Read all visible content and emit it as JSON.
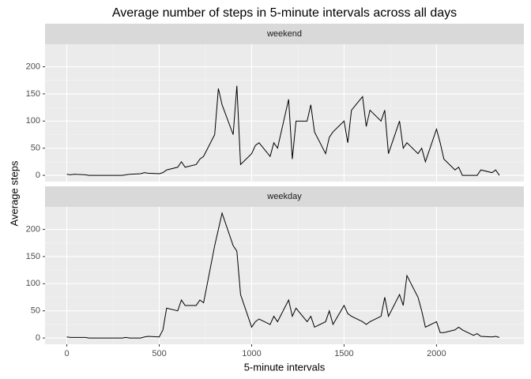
{
  "chart_data": {
    "type": "line",
    "title": "Average number of steps in 5-minute intervals across all days",
    "x_label": "5-minute intervals",
    "y_label": "Average steps",
    "color": "#000000",
    "grid": true,
    "xlim": [
      -117.75,
      2472.75
    ],
    "xticks": [
      0,
      500,
      1000,
      1500,
      2000
    ],
    "ylim": [
      -11.5,
      241.5
    ],
    "yticks": [
      0,
      50,
      100,
      150,
      200
    ],
    "x": [
      0,
      20,
      40,
      100,
      120,
      140,
      200,
      220,
      240,
      300,
      320,
      340,
      400,
      420,
      440,
      500,
      520,
      540,
      600,
      620,
      640,
      700,
      720,
      740,
      800,
      820,
      840,
      900,
      920,
      940,
      1000,
      1020,
      1040,
      1100,
      1120,
      1140,
      1200,
      1220,
      1240,
      1300,
      1320,
      1340,
      1400,
      1420,
      1440,
      1500,
      1520,
      1540,
      1600,
      1620,
      1640,
      1700,
      1720,
      1740,
      1800,
      1820,
      1840,
      1900,
      1920,
      1940,
      2000,
      2020,
      2040,
      2100,
      2120,
      2140,
      2200,
      2220,
      2240,
      2300,
      2320,
      2340
    ],
    "facets": [
      {
        "name": "weekend",
        "values": [
          2,
          1,
          2,
          1,
          0,
          0,
          0,
          0,
          0,
          0,
          1,
          2,
          3,
          5,
          4,
          3,
          5,
          10,
          15,
          25,
          15,
          20,
          30,
          35,
          75,
          160,
          130,
          75,
          165,
          20,
          40,
          55,
          60,
          35,
          60,
          50,
          140,
          30,
          100,
          100,
          130,
          80,
          40,
          70,
          80,
          100,
          60,
          120,
          145,
          90,
          120,
          100,
          120,
          40,
          100,
          50,
          60,
          40,
          50,
          25,
          85,
          60,
          30,
          10,
          15,
          0,
          0,
          0,
          10,
          5,
          10,
          0
        ]
      },
      {
        "name": "weekday",
        "values": [
          2,
          1,
          1,
          1,
          0,
          0,
          0,
          0,
          0,
          0,
          1,
          0,
          0,
          2,
          3,
          2,
          15,
          55,
          50,
          70,
          60,
          60,
          70,
          65,
          170,
          200,
          230,
          170,
          160,
          80,
          20,
          30,
          35,
          25,
          40,
          30,
          70,
          40,
          55,
          30,
          40,
          20,
          30,
          50,
          25,
          60,
          45,
          40,
          30,
          25,
          30,
          40,
          75,
          40,
          80,
          60,
          115,
          75,
          50,
          20,
          30,
          10,
          10,
          15,
          20,
          15,
          5,
          8,
          3,
          2,
          3,
          1
        ]
      }
    ]
  }
}
